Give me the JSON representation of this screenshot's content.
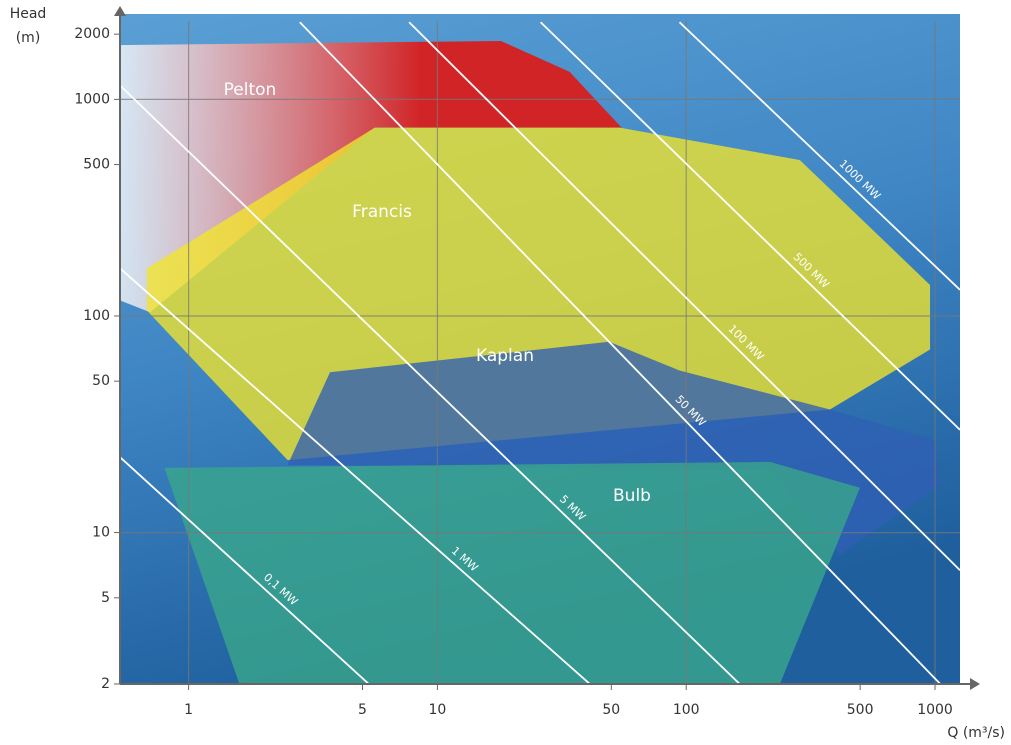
{
  "chart_data": {
    "type": "area",
    "y_label_lines": [
      "Head",
      "(m)"
    ],
    "x_label": "Q (m³/s)",
    "log_x": true,
    "log_y": true,
    "xlim": [
      0.53,
      1260
    ],
    "ylim": [
      2,
      2300
    ],
    "xticks": [
      1,
      5,
      10,
      50,
      100,
      500,
      1000
    ],
    "yticks": [
      2,
      5,
      10,
      50,
      100,
      500,
      {
        "value": 1000,
        "label": "1000"
      },
      {
        "value": 2000,
        "label": "2000"
      }
    ],
    "xgrid": [
      1,
      10,
      100,
      1000
    ],
    "ygrid": [
      10,
      100,
      1000
    ],
    "series": [
      {
        "name": "Pelton",
        "color": "#d81e1e",
        "x": [
          0.53,
          18,
          34,
          55,
          5.6,
          0.7,
          0.53
        ],
        "y": [
          1780,
          1860,
          1340,
          740,
          740,
          104,
          118
        ]
      },
      {
        "name": "Francis",
        "color": "#f2e62a",
        "x": [
          0.68,
          5.6,
          54,
          286,
          955,
          955,
          378,
          2.5,
          0.68
        ],
        "y": [
          166,
          740,
          740,
          525,
          139,
          70,
          37,
          21.6,
          106
        ]
      },
      {
        "name": "Kaplan",
        "color": "#2f5fb4",
        "x": [
          3.7,
          49,
          94,
          378,
          1000,
          1050,
          415,
          217,
          2.5
        ],
        "y": [
          55,
          76,
          56,
          37,
          26.7,
          16.6,
          7.9,
          19.5,
          20.5
        ]
      },
      {
        "name": "Bulb",
        "color": "#3aa88a",
        "x": [
          0.8,
          217,
          499,
          238,
          1.6
        ],
        "y": [
          19.9,
          21.2,
          16.1,
          2,
          2
        ]
      }
    ],
    "power_lines": [
      {
        "label": "0,1 MW",
        "x": [
          0.53,
          5.3
        ],
        "y": [
          22.3,
          2
        ]
      },
      {
        "label": "1 MW",
        "x": [
          0.53,
          41
        ],
        "y": [
          166,
          2
        ]
      },
      {
        "label": "5 MW",
        "x": [
          0.53,
          164
        ],
        "y": [
          1160,
          2
        ]
      },
      {
        "label": "50 MW",
        "x": [
          2.8,
          1050
        ],
        "y": [
          2270,
          2
        ]
      },
      {
        "label": "100 MW",
        "x": [
          7.7,
          1260
        ],
        "y": [
          2270,
          6.7
        ]
      },
      {
        "label": "500 MW",
        "x": [
          26,
          1260
        ],
        "y": [
          2270,
          29.8
        ]
      },
      {
        "label": "1000 MW",
        "x": [
          94,
          1260
        ],
        "y": [
          2270,
          132
        ]
      }
    ]
  }
}
